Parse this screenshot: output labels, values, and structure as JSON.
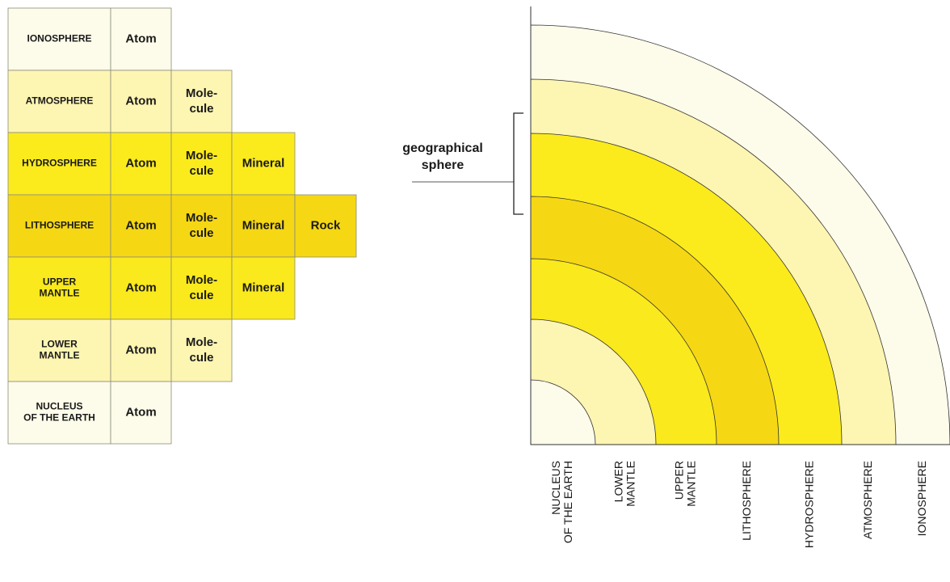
{
  "table": {
    "rows": [
      {
        "sphere": [
          "IONOSPHERE"
        ],
        "cells": [
          [
            "Atom"
          ]
        ],
        "color": "#fdfbea"
      },
      {
        "sphere": [
          "ATMOSPHERE"
        ],
        "cells": [
          [
            "Atom"
          ],
          [
            "Mole-",
            "cule"
          ]
        ],
        "color": "#fdf5b2"
      },
      {
        "sphere": [
          "HYDROSPHERE"
        ],
        "cells": [
          [
            "Atom"
          ],
          [
            "Mole-",
            "cule"
          ],
          [
            "Mineral"
          ]
        ],
        "color": "#fbeb1c"
      },
      {
        "sphere": [
          "LITHOSPHERE"
        ],
        "cells": [
          [
            "Atom"
          ],
          [
            "Mole-",
            "cule"
          ],
          [
            "Mineral"
          ],
          [
            "Rock"
          ]
        ],
        "color": "#f5d714"
      },
      {
        "sphere": [
          "UPPER",
          "MANTLE"
        ],
        "cells": [
          [
            "Atom"
          ],
          [
            "Mole-",
            "cule"
          ],
          [
            "Mineral"
          ]
        ],
        "color": "#fae91c"
      },
      {
        "sphere": [
          "LOWER",
          "MANTLE"
        ],
        "cells": [
          [
            "Atom"
          ],
          [
            "Mole-",
            "cule"
          ]
        ],
        "color": "#fdf5b2"
      },
      {
        "sphere": [
          "NUCLEUS",
          "OF THE EARTH"
        ],
        "cells": [
          [
            "Atom"
          ]
        ],
        "color": "#fdfbea"
      }
    ]
  },
  "diagram": {
    "rings": [
      {
        "label": [
          "NUCLEUS",
          "OF THE EARTH"
        ],
        "color": "#fdfbea"
      },
      {
        "label": [
          "LOWER",
          "MANTLE"
        ],
        "color": "#fdf5b2"
      },
      {
        "label": [
          "UPPER",
          "MANTLE"
        ],
        "color": "#fae91c"
      },
      {
        "label": [
          "LITHOSPHERE"
        ],
        "color": "#f5d714"
      },
      {
        "label": [
          "HYDROSPHERE"
        ],
        "color": "#fbeb1c"
      },
      {
        "label": [
          "ATMOSPHERE"
        ],
        "color": "#fdf5b2"
      },
      {
        "label": [
          "IONOSPHERE"
        ],
        "color": "#fdfbea"
      }
    ],
    "bracket_label": [
      "geographical",
      "sphere"
    ]
  }
}
